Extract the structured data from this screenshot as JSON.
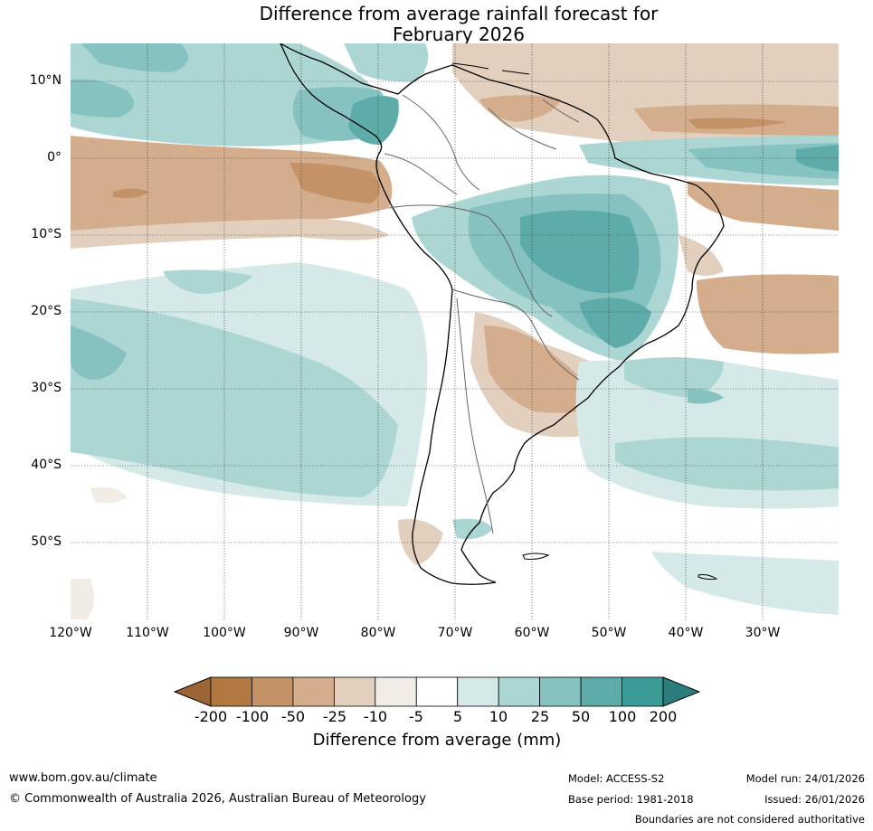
{
  "title": {
    "line1": "Difference from average rainfall forecast for",
    "line2": "February 2026"
  },
  "map": {
    "lat_labels": [
      "10°N",
      "0°",
      "10°S",
      "20°S",
      "30°S",
      "40°S",
      "50°S"
    ],
    "lon_labels": [
      "120°W",
      "110°W",
      "100°W",
      "90°W",
      "80°W",
      "70°W",
      "60°W",
      "50°W",
      "40°W",
      "30°W"
    ],
    "lon_range": [
      -120,
      -20
    ],
    "lat_range": [
      -60,
      15
    ]
  },
  "colorbar": {
    "title": "Difference from average (mm)",
    "tick_labels": [
      "-200",
      "-100",
      "-50",
      "-25",
      "-10",
      "-5",
      "5",
      "10",
      "25",
      "50",
      "100",
      "200"
    ],
    "colors": [
      "#9c6535",
      "#b07840",
      "#c39267",
      "#d4ae8c",
      "#e2cfbd",
      "#f1ece6",
      "#ffffff",
      "#d5eae8",
      "#acd6d4",
      "#86c3c0",
      "#5eacaa",
      "#3c9c98",
      "#2a7d7b"
    ]
  },
  "footer": {
    "website": "www.bom.gov.au/climate",
    "copyright": "© Commonwealth of Australia 2026, Australian Bureau of Meteorology",
    "model": "Model: ACCESS-S2",
    "base_period": "Base period: 1981-2018",
    "model_run": "Model run: 24/01/2026",
    "issued": "Issued: 26/01/2026",
    "disclaimer": "Boundaries are not considered authoritative"
  }
}
